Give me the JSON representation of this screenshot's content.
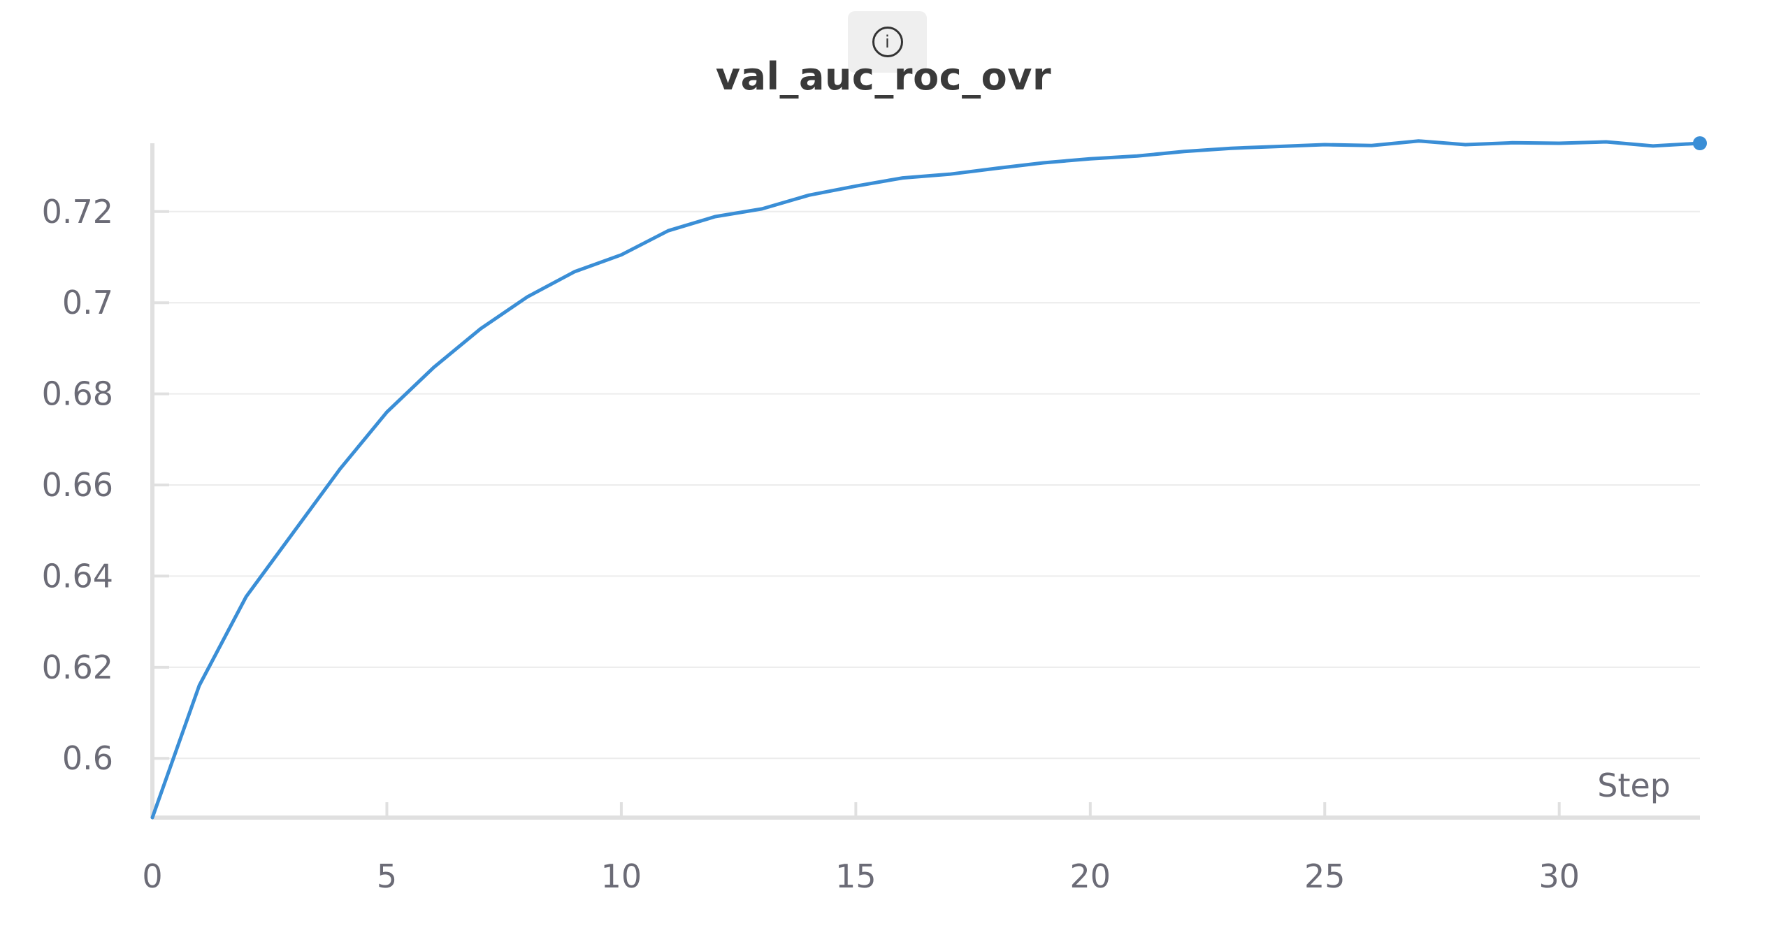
{
  "panel": {
    "info_icon": "info-icon",
    "info_glyph": "i"
  },
  "colors": {
    "series": "#3a8ed6",
    "axis": "#e0e0e0",
    "grid": "#ececec",
    "tick_text": "#6b6b76",
    "title": "#3a3a3a"
  },
  "chart_data": {
    "type": "line",
    "title": "val_auc_roc_ovr",
    "xlabel": "Step",
    "ylabel": "",
    "xlim": [
      0,
      33
    ],
    "ylim": [
      0.587,
      0.735
    ],
    "xticks": [
      0,
      5,
      10,
      15,
      20,
      25,
      30
    ],
    "xtick_labels": [
      "0",
      "5",
      "10",
      "15",
      "20",
      "25",
      "30"
    ],
    "yticks": [
      0.6,
      0.62,
      0.64,
      0.66,
      0.68,
      0.7,
      0.72
    ],
    "ytick_labels": [
      "0.6",
      "0.62",
      "0.64",
      "0.66",
      "0.68",
      "0.7",
      "0.72"
    ],
    "grid": true,
    "legend": "none",
    "series": [
      {
        "x": [
          0,
          1,
          2,
          3,
          4,
          5,
          6,
          7,
          8,
          9,
          10,
          11,
          12,
          13,
          14,
          15,
          16,
          17,
          18,
          19,
          20,
          21,
          22,
          23,
          24,
          25,
          26,
          27,
          28,
          29,
          30,
          31,
          32,
          33
        ],
        "values": [
          0.587,
          0.616,
          0.6355,
          0.6495,
          0.6635,
          0.676,
          0.6858,
          0.6943,
          0.7013,
          0.7068,
          0.7105,
          0.7158,
          0.7189,
          0.7206,
          0.7236,
          0.7256,
          0.7274,
          0.7282,
          0.7295,
          0.7307,
          0.7316,
          0.7322,
          0.7332,
          0.7339,
          0.7343,
          0.7347,
          0.7345,
          0.7355,
          0.7347,
          0.7351,
          0.735,
          0.7353,
          0.7344,
          0.735
        ],
        "marker_last": true
      }
    ]
  }
}
